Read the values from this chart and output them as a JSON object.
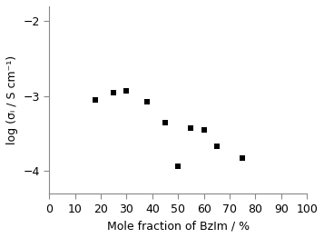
{
  "x": [
    18,
    25,
    30,
    38,
    45,
    50,
    55,
    60,
    65,
    75
  ],
  "y": [
    -3.05,
    -2.95,
    -2.93,
    -3.08,
    -3.35,
    -3.93,
    -3.42,
    -3.45,
    -3.67,
    -3.83
  ],
  "xlabel": "Mole fraction of BzIm / %",
  "ylabel": "log (σᵢ / S cm⁻¹)",
  "xlim": [
    0,
    100
  ],
  "ylim": [
    -4.3,
    -1.8
  ],
  "xticks": [
    0,
    10,
    20,
    30,
    40,
    50,
    60,
    70,
    80,
    90,
    100
  ],
  "yticks": [
    -4,
    -3,
    -2
  ],
  "marker": "s",
  "marker_color": "black",
  "marker_size": 5,
  "background_color": "#ffffff",
  "spine_color": "#888888",
  "tick_label_fontsize": 9,
  "axis_label_fontsize": 9
}
